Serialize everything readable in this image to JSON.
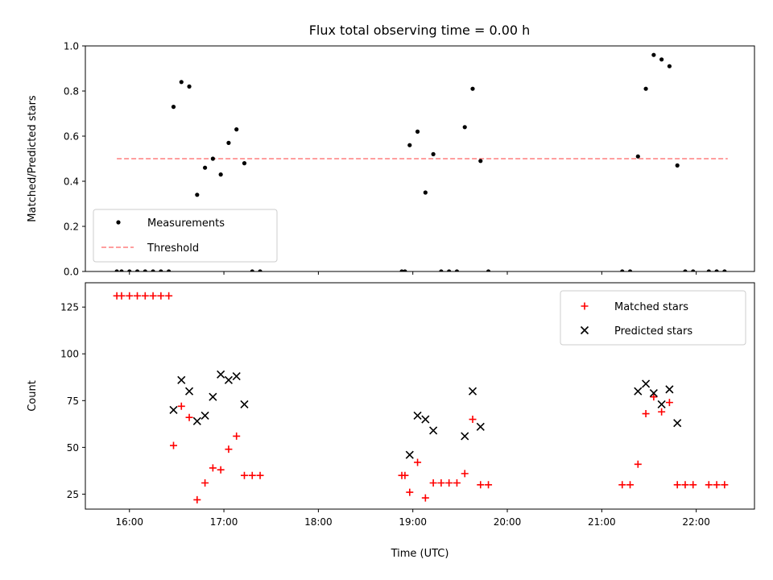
{
  "chart_data": [
    {
      "type": "scatter",
      "title": "Flux total observing time = 0.00 h",
      "xlabel": "",
      "ylabel": "Matched/Predicted stars",
      "ylim": [
        0,
        1.0
      ],
      "xlim": [
        "15:32",
        "22:37"
      ],
      "grid": false,
      "legend_position": "lower-left",
      "yticks": [
        "0.0",
        "0.2",
        "0.4",
        "0.6",
        "0.8",
        "1.0"
      ],
      "threshold": {
        "name": "Threshold",
        "value": 0.5,
        "x_start": "15:52",
        "x_end": "22:20",
        "color": "#ff7f7f",
        "style": "dashed"
      },
      "series": [
        {
          "name": "Measurements",
          "color": "#000000",
          "marker": "dot",
          "points": [
            [
              "15:52",
              0
            ],
            [
              "15:55",
              0
            ],
            [
              "16:00",
              0
            ],
            [
              "16:05",
              0
            ],
            [
              "16:10",
              0
            ],
            [
              "16:15",
              0
            ],
            [
              "16:20",
              0
            ],
            [
              "16:25",
              0
            ],
            [
              "16:28",
              0.73
            ],
            [
              "16:33",
              0.84
            ],
            [
              "16:38",
              0.82
            ],
            [
              "16:43",
              0.34
            ],
            [
              "16:48",
              0.46
            ],
            [
              "16:53",
              0.5
            ],
            [
              "16:58",
              0.43
            ],
            [
              "17:03",
              0.57
            ],
            [
              "17:08",
              0.63
            ],
            [
              "17:13",
              0.48
            ],
            [
              "17:18",
              0
            ],
            [
              "17:23",
              0
            ],
            [
              "18:53",
              0
            ],
            [
              "18:55",
              0
            ],
            [
              "18:58",
              0.56
            ],
            [
              "19:03",
              0.62
            ],
            [
              "19:08",
              0.35
            ],
            [
              "19:13",
              0.52
            ],
            [
              "19:18",
              0
            ],
            [
              "19:23",
              0
            ],
            [
              "19:28",
              0
            ],
            [
              "19:33",
              0.64
            ],
            [
              "19:38",
              0.81
            ],
            [
              "19:43",
              0.49
            ],
            [
              "19:48",
              0
            ],
            [
              "21:13",
              0
            ],
            [
              "21:18",
              0
            ],
            [
              "21:23",
              0.51
            ],
            [
              "21:28",
              0.81
            ],
            [
              "21:33",
              0.96
            ],
            [
              "21:38",
              0.94
            ],
            [
              "21:43",
              0.91
            ],
            [
              "21:48",
              0.47
            ],
            [
              "21:53",
              0
            ],
            [
              "21:58",
              0
            ],
            [
              "22:08",
              0
            ],
            [
              "22:13",
              0
            ],
            [
              "22:18",
              0
            ]
          ]
        }
      ]
    },
    {
      "type": "scatter",
      "title": "",
      "xlabel": "Time (UTC)",
      "ylabel": "Count",
      "ylim": [
        17,
        138
      ],
      "xlim": [
        "15:32",
        "22:37"
      ],
      "grid": false,
      "legend_position": "top-right",
      "yticks": [
        "25",
        "50",
        "75",
        "100",
        "125"
      ],
      "xticks": [
        "16:00",
        "17:00",
        "18:00",
        "19:00",
        "20:00",
        "21:00",
        "22:00"
      ],
      "series": [
        {
          "name": "Matched stars",
          "color": "#ff0000",
          "marker": "plus",
          "points": [
            [
              "15:52",
              131
            ],
            [
              "15:55",
              131
            ],
            [
              "16:00",
              131
            ],
            [
              "16:05",
              131
            ],
            [
              "16:10",
              131
            ],
            [
              "16:15",
              131
            ],
            [
              "16:20",
              131
            ],
            [
              "16:25",
              131
            ],
            [
              "16:28",
              51
            ],
            [
              "16:33",
              72
            ],
            [
              "16:38",
              66
            ],
            [
              "16:43",
              22
            ],
            [
              "16:48",
              31
            ],
            [
              "16:53",
              39
            ],
            [
              "16:58",
              38
            ],
            [
              "17:03",
              49
            ],
            [
              "17:08",
              56
            ],
            [
              "17:13",
              35
            ],
            [
              "17:18",
              35
            ],
            [
              "17:23",
              35
            ],
            [
              "18:53",
              35
            ],
            [
              "18:55",
              35
            ],
            [
              "18:58",
              26
            ],
            [
              "19:03",
              42
            ],
            [
              "19:08",
              23
            ],
            [
              "19:13",
              31
            ],
            [
              "19:18",
              31
            ],
            [
              "19:23",
              31
            ],
            [
              "19:28",
              31
            ],
            [
              "19:33",
              36
            ],
            [
              "19:38",
              65
            ],
            [
              "19:43",
              30
            ],
            [
              "19:48",
              30
            ],
            [
              "21:13",
              30
            ],
            [
              "21:18",
              30
            ],
            [
              "21:23",
              41
            ],
            [
              "21:28",
              68
            ],
            [
              "21:33",
              77
            ],
            [
              "21:38",
              69
            ],
            [
              "21:43",
              74
            ],
            [
              "21:48",
              30
            ],
            [
              "21:53",
              30
            ],
            [
              "21:58",
              30
            ],
            [
              "22:08",
              30
            ],
            [
              "22:13",
              30
            ],
            [
              "22:18",
              30
            ]
          ]
        },
        {
          "name": "Predicted stars",
          "color": "#000000",
          "marker": "x",
          "points": [
            [
              "16:28",
              70
            ],
            [
              "16:33",
              86
            ],
            [
              "16:38",
              80
            ],
            [
              "16:43",
              64
            ],
            [
              "16:48",
              67
            ],
            [
              "16:53",
              77
            ],
            [
              "16:58",
              89
            ],
            [
              "17:03",
              86
            ],
            [
              "17:08",
              88
            ],
            [
              "17:13",
              73
            ],
            [
              "18:58",
              46
            ],
            [
              "19:03",
              67
            ],
            [
              "19:08",
              65
            ],
            [
              "19:13",
              59
            ],
            [
              "19:33",
              56
            ],
            [
              "19:38",
              80
            ],
            [
              "19:43",
              61
            ],
            [
              "21:23",
              80
            ],
            [
              "21:28",
              84
            ],
            [
              "21:33",
              79
            ],
            [
              "21:38",
              73
            ],
            [
              "21:43",
              81
            ],
            [
              "21:48",
              63
            ]
          ]
        }
      ]
    }
  ]
}
